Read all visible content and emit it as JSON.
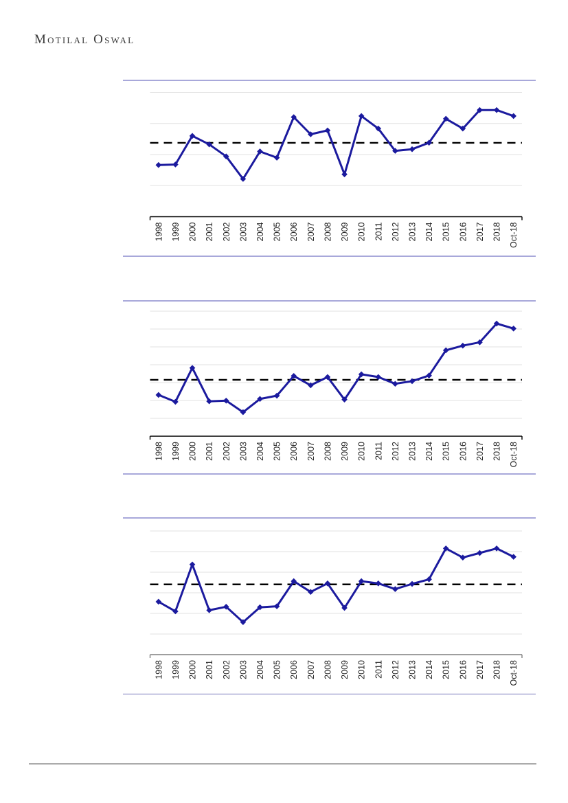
{
  "header": {
    "logo_text": "Motilal Oswal"
  },
  "colors": {
    "line": "#1b1a9e",
    "average_line": "#000000",
    "gridline": "#e2e2e2",
    "frame_border": "#8c8ccd",
    "chart3_bottom_border": "#a9a9d6",
    "axis_colors": [
      "#000000",
      "#000000",
      "#7f7f7f"
    ],
    "label_text": "#262626",
    "footer_rule": "#ababab",
    "logo_text": "#3b3b3b"
  },
  "chart_data": [
    {
      "type": "line",
      "title": "",
      "categories": [
        "1998",
        "1999",
        "2000",
        "2001",
        "2002",
        "2003",
        "2004",
        "2005",
        "2006",
        "2007",
        "2008",
        "2009",
        "2010",
        "2011",
        "2012",
        "2013",
        "2014",
        "2015",
        "2016",
        "2017",
        "2018",
        "Oct-18"
      ],
      "series": [
        {
          "name": "value",
          "values": [
            41.6,
            42.0,
            65.0,
            58.2,
            48.5,
            30.4,
            52.5,
            47.5,
            80.1,
            66.3,
            69.4,
            34.1,
            81.0,
            70.9,
            53.0,
            54.3,
            59.5,
            78.8,
            70.9,
            85.8,
            85.8,
            81.0
          ]
        }
      ],
      "average_dashed_line": 59.4,
      "grid_divisions": 4,
      "ylim": [
        0,
        100
      ],
      "y_axis_tick_labels": "none (values are % of plot height above x-axis, estimated from pixels)",
      "legend": "none",
      "marker": "diamond",
      "xlabel": "",
      "ylabel": ""
    },
    {
      "type": "line",
      "title": "",
      "categories": [
        "1998",
        "1999",
        "2000",
        "2001",
        "2002",
        "2003",
        "2004",
        "2005",
        "2006",
        "2007",
        "2008",
        "2009",
        "2010",
        "2011",
        "2012",
        "2013",
        "2014",
        "2015",
        "2016",
        "2017",
        "2018",
        "Oct-18"
      ],
      "series": [
        {
          "name": "value",
          "values": [
            33.0,
            27.5,
            54.6,
            27.9,
            28.4,
            19.2,
            29.8,
            32.4,
            48.2,
            40.7,
            47.3,
            29.3,
            49.5,
            47.3,
            41.9,
            44.0,
            48.5,
            68.7,
            72.4,
            75.1,
            90.1,
            86.1
          ]
        }
      ],
      "average_dashed_line": 45.1,
      "grid_divisions": 7,
      "ylim": [
        0,
        100
      ],
      "y_axis_tick_labels": "none (values are % of plot height above x-axis, estimated from pixels)",
      "legend": "none",
      "marker": "diamond",
      "xlabel": "",
      "ylabel": ""
    },
    {
      "type": "line",
      "title": "",
      "categories": [
        "1998",
        "1999",
        "2000",
        "2001",
        "2002",
        "2003",
        "2004",
        "2005",
        "2006",
        "2007",
        "2008",
        "2009",
        "2010",
        "2011",
        "2012",
        "2013",
        "2014",
        "2015",
        "2016",
        "2017",
        "2018",
        "Oct-18"
      ],
      "series": [
        {
          "name": "value",
          "values": [
            42.8,
            35.0,
            72.9,
            35.9,
            38.7,
            26.3,
            38.3,
            39.1,
            59.4,
            50.7,
            57.6,
            37.8,
            59.4,
            57.6,
            53.0,
            57.2,
            60.9,
            85.9,
            78.5,
            82.2,
            85.9,
            79.1
          ]
        }
      ],
      "average_dashed_line": 56.8,
      "grid_divisions": 6,
      "ylim": [
        0,
        100
      ],
      "y_axis_tick_labels": "none (values are % of plot height above x-axis, estimated from pixels)",
      "legend": "none",
      "marker": "diamond",
      "xlabel": "",
      "ylabel": ""
    }
  ]
}
